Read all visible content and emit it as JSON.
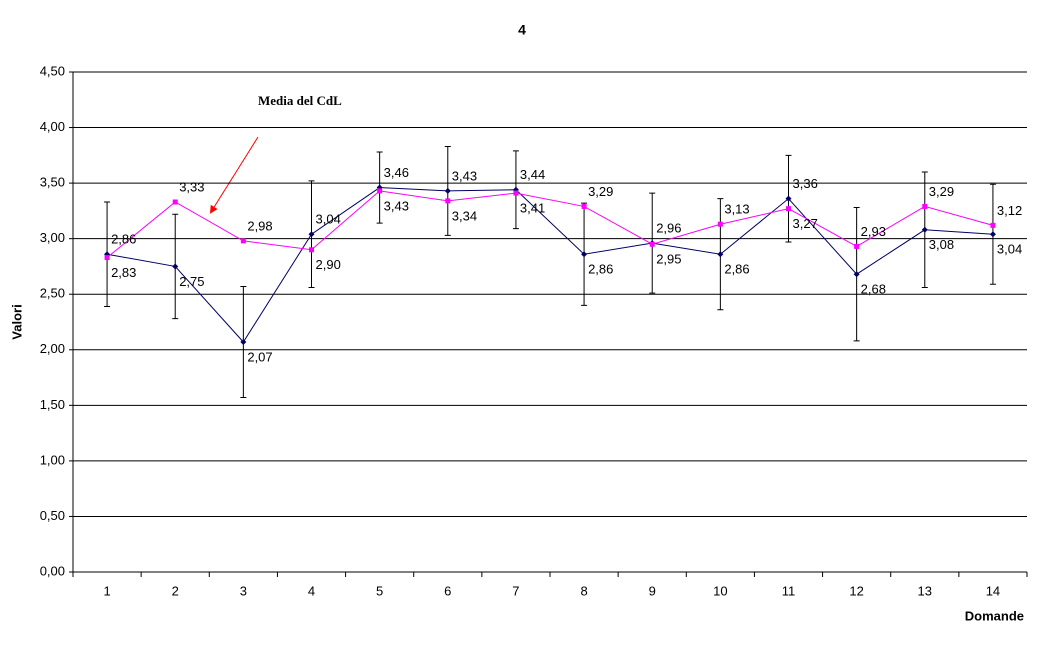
{
  "chart_data": {
    "type": "line",
    "title": "4",
    "y_label": "Valori",
    "x_label": "Domande",
    "annotation": "Media del CdL",
    "categories": [
      "1",
      "2",
      "3",
      "4",
      "5",
      "6",
      "7",
      "8",
      "9",
      "10",
      "11",
      "12",
      "13",
      "14"
    ],
    "ylim": [
      0,
      4.5
    ],
    "yticks": [
      {
        "value": 0,
        "label": "0,00"
      },
      {
        "value": 0.5,
        "label": "0,50"
      },
      {
        "value": 1,
        "label": "1,00"
      },
      {
        "value": 1.5,
        "label": "1,50"
      },
      {
        "value": 2,
        "label": "2,00"
      },
      {
        "value": 2.5,
        "label": "2,50"
      },
      {
        "value": 3,
        "label": "3,00"
      },
      {
        "value": 3.5,
        "label": "3,50"
      },
      {
        "value": 4,
        "label": "4,00"
      },
      {
        "value": 4.5,
        "label": "4,50"
      }
    ],
    "grid": true,
    "series": [
      {
        "color": "#000066",
        "marker": "diamond",
        "values": [
          2.86,
          2.75,
          2.07,
          3.04,
          3.46,
          3.43,
          3.44,
          2.86,
          2.96,
          2.86,
          3.36,
          2.68,
          3.08,
          3.04
        ],
        "value_labels": [
          "2,86",
          "2,75",
          "2,07",
          "3,04",
          "3,46",
          "3,43",
          "3,44",
          "2,86",
          "2,96",
          "2,86",
          "3,36",
          "2,68",
          "3,08",
          "3,04"
        ],
        "errors": [
          0.47,
          0.47,
          0.5,
          0.48,
          0.32,
          0.4,
          0.35,
          0.46,
          0.45,
          0.5,
          0.39,
          0.6,
          0.52,
          0.45
        ]
      },
      {
        "color": "#ff00ff",
        "marker": "square",
        "values": [
          2.83,
          3.33,
          2.98,
          2.9,
          3.43,
          3.34,
          3.41,
          3.29,
          2.95,
          3.13,
          3.27,
          2.93,
          3.29,
          3.12
        ],
        "value_labels": [
          "2,83",
          "3,33",
          "2,98",
          "2,90",
          "3,43",
          "3,34",
          "3,41",
          "3,29",
          "2,95",
          "3,13",
          "3,27",
          "2,93",
          "3,29",
          "3,12"
        ]
      }
    ]
  }
}
